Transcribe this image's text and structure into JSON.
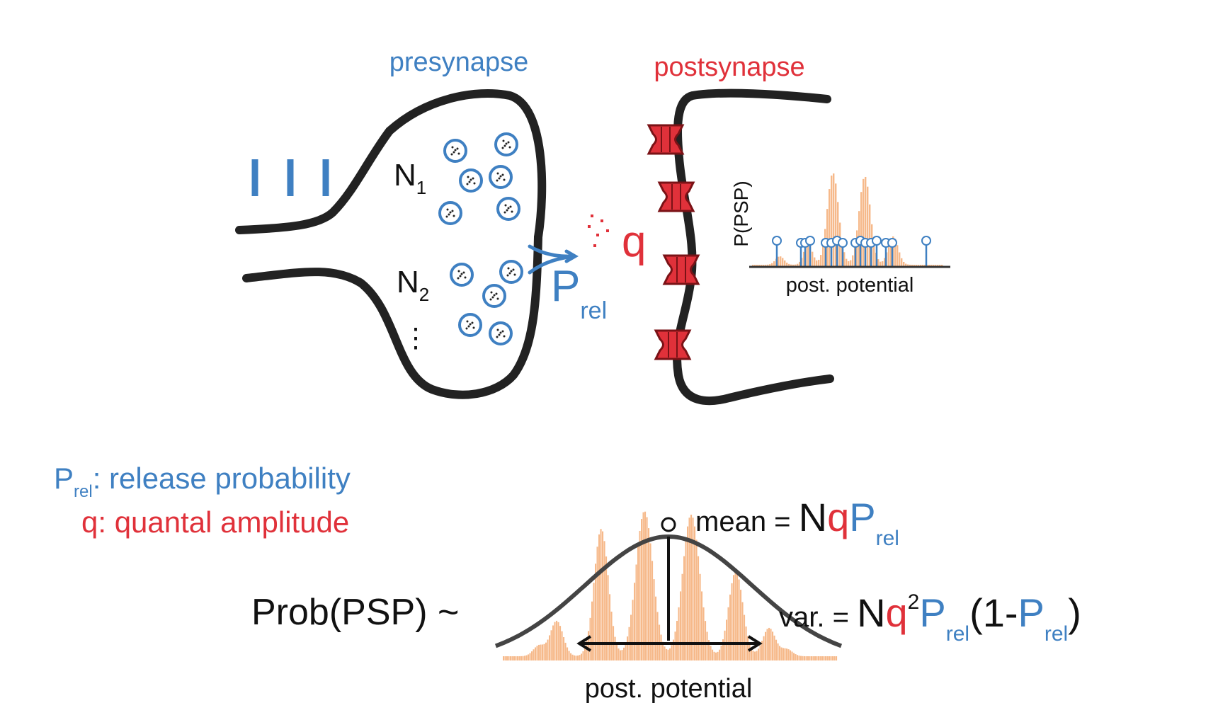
{
  "labels": {
    "presynapse": "presynapse",
    "postsynapse": "postsynapse",
    "n1_base": "N",
    "n1_sub": "1",
    "n2_base": "N",
    "n2_sub": "2",
    "ellipsis": "⋮",
    "prel_base": "P",
    "prel_sub": "rel",
    "q": "q",
    "small_ylabel": "P(PSP)",
    "small_xlabel": "post. potential",
    "big_xlabel": "post. potential"
  },
  "legend": {
    "prel_base": "P",
    "prel_sub": "rel",
    "prel_desc": ": release probability",
    "q_desc": "q: quantal amplitude"
  },
  "formula": {
    "prob": "Prob(PSP) ~",
    "mean_label": "mean = ",
    "mean_N": "N",
    "mean_q": "q",
    "mean_P": "P",
    "mean_sub": "rel",
    "var_label": "var. = ",
    "var_N": "N",
    "var_q": "q",
    "var_sup": "2",
    "var_P1": "P",
    "var_sub1": "rel",
    "var_paren_open": "(1-",
    "var_P2": "P",
    "var_sub2": "rel",
    "var_paren_close": ")"
  },
  "colors": {
    "blue": "#3f80c2",
    "red": "#e0313a",
    "histogram": "#f6b98a",
    "membrane": "#222222"
  }
}
